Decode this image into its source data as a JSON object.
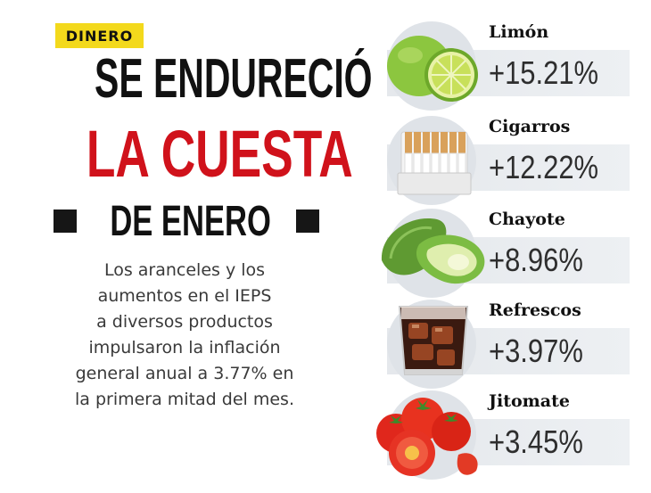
{
  "tag": "DINERO",
  "headline": {
    "line1": "SE ENDURECIÓ",
    "line2": "LA CUESTA",
    "line3": "DE ENERO"
  },
  "description": [
    "Los aranceles y los",
    "aumentos en el IEPS",
    "a diversos productos",
    "impulsaron la inflación",
    "general anual a 3.77% en",
    "la primera mitad del mes."
  ],
  "items": [
    {
      "name": "Limón",
      "value": "+15.21%",
      "icon": "lime-icon"
    },
    {
      "name": "Cigarros",
      "value": "+12.22%",
      "icon": "cigarettes-icon"
    },
    {
      "name": "Chayote",
      "value": "+8.96%",
      "icon": "chayote-icon"
    },
    {
      "name": "Refrescos",
      "value": "+3.97%",
      "icon": "soda-glass-icon"
    },
    {
      "name": "Jitomate",
      "value": "+3.45%",
      "icon": "tomato-icon"
    }
  ],
  "colors": {
    "accent_red": "#d0121b",
    "tag_yellow": "#f3d91c",
    "band_gray": "#e5e8ec"
  }
}
